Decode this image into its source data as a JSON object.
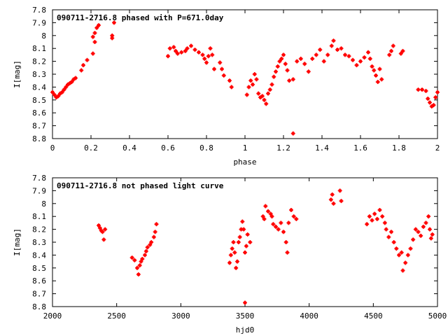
{
  "style": {
    "point_color": "#ff0000",
    "axis_color": "#000000",
    "background": "#ffffff",
    "marker_shape": "plus-square"
  },
  "chart_data": [
    {
      "type": "scatter",
      "title": "090711-2716.8 phased with P=671.0day",
      "xlabel": "phase",
      "ylabel": "I[mag]",
      "xlim": [
        0,
        2
      ],
      "ylim": [
        7.8,
        8.8
      ],
      "y_inverted": true,
      "grid": false,
      "legend": "none",
      "xticks": [
        "0",
        "0.2",
        "0.4",
        "0.6",
        "0.8",
        "1",
        "1.2",
        "1.4",
        "1.6",
        "1.8",
        "2"
      ],
      "yticks": [
        "7.8",
        "7.9",
        "8",
        "8.1",
        "8.2",
        "8.3",
        "8.4",
        "8.5",
        "8.6",
        "8.7",
        "8.8"
      ],
      "series": [
        {
          "points": [
            [
              0.0,
              8.44
            ],
            [
              0.01,
              8.46
            ],
            [
              0.02,
              8.48
            ],
            [
              0.03,
              8.47
            ],
            [
              0.04,
              8.45
            ],
            [
              0.05,
              8.44
            ],
            [
              0.06,
              8.42
            ],
            [
              0.07,
              8.4
            ],
            [
              0.08,
              8.38
            ],
            [
              0.09,
              8.37
            ],
            [
              0.1,
              8.36
            ],
            [
              0.11,
              8.34
            ],
            [
              0.12,
              8.33
            ],
            [
              0.15,
              8.27
            ],
            [
              0.16,
              8.23
            ],
            [
              0.18,
              8.19
            ],
            [
              0.21,
              8.14
            ],
            [
              0.22,
              8.05
            ],
            [
              0.21,
              8.01
            ],
            [
              0.22,
              7.98
            ],
            [
              0.23,
              7.94
            ],
            [
              0.24,
              7.92
            ],
            [
              0.32,
              7.9
            ],
            [
              0.31,
              8.0
            ],
            [
              0.31,
              8.02
            ],
            [
              0.6,
              8.16
            ],
            [
              0.61,
              8.1
            ],
            [
              0.63,
              8.09
            ],
            [
              0.64,
              8.12
            ],
            [
              0.65,
              8.14
            ],
            [
              0.67,
              8.13
            ],
            [
              0.69,
              8.12
            ],
            [
              0.7,
              8.1
            ],
            [
              0.72,
              8.08
            ],
            [
              0.74,
              8.11
            ],
            [
              0.76,
              8.13
            ],
            [
              0.78,
              8.15
            ],
            [
              0.79,
              8.18
            ],
            [
              0.8,
              8.21
            ],
            [
              0.81,
              8.16
            ],
            [
              0.82,
              8.1
            ],
            [
              0.83,
              8.15
            ],
            [
              0.84,
              8.26
            ],
            [
              0.87,
              8.21
            ],
            [
              0.88,
              8.26
            ],
            [
              0.89,
              8.31
            ],
            [
              0.92,
              8.35
            ],
            [
              0.93,
              8.4
            ],
            [
              1.01,
              8.46
            ],
            [
              1.02,
              8.4
            ],
            [
              1.03,
              8.35
            ],
            [
              1.04,
              8.38
            ],
            [
              1.05,
              8.3
            ],
            [
              1.06,
              8.34
            ],
            [
              1.07,
              8.45
            ],
            [
              1.08,
              8.48
            ],
            [
              1.09,
              8.47
            ],
            [
              1.1,
              8.5
            ],
            [
              1.11,
              8.53
            ],
            [
              1.12,
              8.45
            ],
            [
              1.13,
              8.42
            ],
            [
              1.14,
              8.38
            ],
            [
              1.15,
              8.32
            ],
            [
              1.16,
              8.28
            ],
            [
              1.17,
              8.24
            ],
            [
              1.18,
              8.2
            ],
            [
              1.19,
              8.18
            ],
            [
              1.2,
              8.15
            ],
            [
              1.21,
              8.22
            ],
            [
              1.22,
              8.27
            ],
            [
              1.23,
              8.35
            ],
            [
              1.25,
              8.34
            ],
            [
              1.25,
              8.76
            ],
            [
              1.27,
              8.2
            ],
            [
              1.29,
              8.18
            ],
            [
              1.31,
              8.22
            ],
            [
              1.33,
              8.28
            ],
            [
              1.35,
              8.18
            ],
            [
              1.37,
              8.15
            ],
            [
              1.39,
              8.11
            ],
            [
              1.41,
              8.2
            ],
            [
              1.43,
              8.15
            ],
            [
              1.45,
              8.08
            ],
            [
              1.46,
              8.04
            ],
            [
              1.48,
              8.11
            ],
            [
              1.5,
              8.1
            ],
            [
              1.52,
              8.15
            ],
            [
              1.54,
              8.16
            ],
            [
              1.56,
              8.19
            ],
            [
              1.58,
              8.23
            ],
            [
              1.6,
              8.2
            ],
            [
              1.62,
              8.17
            ],
            [
              1.64,
              8.13
            ],
            [
              1.65,
              8.18
            ],
            [
              1.66,
              8.24
            ],
            [
              1.67,
              8.27
            ],
            [
              1.68,
              8.31
            ],
            [
              1.69,
              8.36
            ],
            [
              1.7,
              8.26
            ],
            [
              1.71,
              8.34
            ],
            [
              1.75,
              8.15
            ],
            [
              1.76,
              8.12
            ],
            [
              1.77,
              8.08
            ],
            [
              1.81,
              8.14
            ],
            [
              1.82,
              8.12
            ],
            [
              1.9,
              8.42
            ],
            [
              1.92,
              8.42
            ],
            [
              1.94,
              8.43
            ],
            [
              1.95,
              8.49
            ],
            [
              1.96,
              8.52
            ],
            [
              1.97,
              8.55
            ],
            [
              1.98,
              8.54
            ],
            [
              1.99,
              8.48
            ],
            [
              2.0,
              8.44
            ]
          ]
        }
      ]
    },
    {
      "type": "scatter",
      "title": "090711-2716.8 not phased light curve",
      "xlabel": "hjd0",
      "ylabel": "I[mag]",
      "xlim": [
        2000,
        5000
      ],
      "ylim": [
        7.8,
        8.8
      ],
      "y_inverted": true,
      "grid": false,
      "legend": "none",
      "xticks": [
        "2000",
        "2500",
        "3000",
        "3500",
        "4000",
        "4500",
        "5000"
      ],
      "yticks": [
        "7.8",
        "7.9",
        "8",
        "8.1",
        "8.2",
        "8.3",
        "8.4",
        "8.5",
        "8.6",
        "8.7",
        "8.8"
      ],
      "series": [
        {
          "points": [
            [
              2360,
              8.17
            ],
            [
              2370,
              8.19
            ],
            [
              2380,
              8.21
            ],
            [
              2390,
              8.22
            ],
            [
              2400,
              8.28
            ],
            [
              2410,
              8.2
            ],
            [
              2620,
              8.42
            ],
            [
              2640,
              8.44
            ],
            [
              2660,
              8.5
            ],
            [
              2670,
              8.55
            ],
            [
              2680,
              8.48
            ],
            [
              2690,
              8.45
            ],
            [
              2700,
              8.43
            ],
            [
              2720,
              8.4
            ],
            [
              2730,
              8.37
            ],
            [
              2740,
              8.34
            ],
            [
              2760,
              8.32
            ],
            [
              2770,
              8.3
            ],
            [
              2790,
              8.26
            ],
            [
              2800,
              8.22
            ],
            [
              2810,
              8.16
            ],
            [
              3380,
              8.46
            ],
            [
              3390,
              8.4
            ],
            [
              3400,
              8.35
            ],
            [
              3410,
              8.3
            ],
            [
              3420,
              8.38
            ],
            [
              3430,
              8.5
            ],
            [
              3440,
              8.45
            ],
            [
              3450,
              8.3
            ],
            [
              3460,
              8.26
            ],
            [
              3470,
              8.2
            ],
            [
              3480,
              8.14
            ],
            [
              3490,
              8.2
            ],
            [
              3500,
              8.38
            ],
            [
              3510,
              8.33
            ],
            [
              3520,
              8.24
            ],
            [
              3540,
              8.3
            ],
            [
              3500,
              8.77
            ],
            [
              3640,
              8.1
            ],
            [
              3650,
              8.12
            ],
            [
              3660,
              8.02
            ],
            [
              3680,
              8.06
            ],
            [
              3700,
              8.08
            ],
            [
              3710,
              8.1
            ],
            [
              3720,
              8.16
            ],
            [
              3740,
              8.18
            ],
            [
              3760,
              8.2
            ],
            [
              3780,
              8.15
            ],
            [
              3800,
              8.22
            ],
            [
              3820,
              8.3
            ],
            [
              3830,
              8.38
            ],
            [
              3840,
              8.15
            ],
            [
              3860,
              8.05
            ],
            [
              3880,
              8.1
            ],
            [
              3900,
              8.12
            ],
            [
              4170,
              7.97
            ],
            [
              4180,
              7.93
            ],
            [
              4190,
              8.0
            ],
            [
              4240,
              7.9
            ],
            [
              4250,
              7.98
            ],
            [
              4450,
              8.16
            ],
            [
              4470,
              8.1
            ],
            [
              4490,
              8.13
            ],
            [
              4510,
              8.08
            ],
            [
              4530,
              8.12
            ],
            [
              4550,
              8.05
            ],
            [
              4570,
              8.1
            ],
            [
              4590,
              8.15
            ],
            [
              4600,
              8.2
            ],
            [
              4620,
              8.26
            ],
            [
              4640,
              8.22
            ],
            [
              4660,
              8.3
            ],
            [
              4680,
              8.35
            ],
            [
              4700,
              8.4
            ],
            [
              4720,
              8.38
            ],
            [
              4730,
              8.52
            ],
            [
              4750,
              8.46
            ],
            [
              4770,
              8.4
            ],
            [
              4790,
              8.35
            ],
            [
              4810,
              8.28
            ],
            [
              4830,
              8.2
            ],
            [
              4850,
              8.22
            ],
            [
              4870,
              8.25
            ],
            [
              4890,
              8.18
            ],
            [
              4910,
              8.15
            ],
            [
              4930,
              8.1
            ],
            [
              4940,
              8.2
            ],
            [
              4950,
              8.27
            ],
            [
              4960,
              8.24
            ]
          ]
        }
      ]
    }
  ]
}
